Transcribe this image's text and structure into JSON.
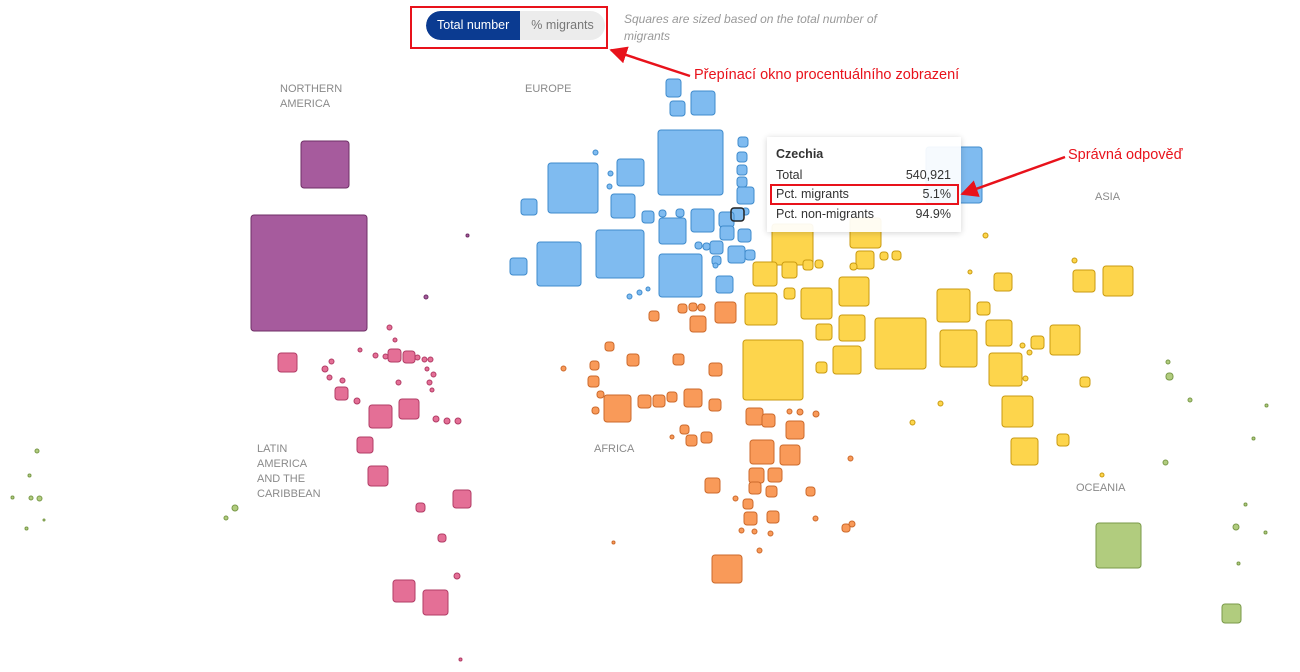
{
  "toggle": {
    "total_label": "Total number",
    "pct_label": "% migrants",
    "note": "Squares are sized based on the total number of migrants"
  },
  "regions": [
    {
      "name": "NORTHERN AMERICA",
      "lines": [
        "NORTHERN",
        "AMERICA"
      ]
    },
    {
      "name": "EUROPE",
      "lines": [
        "EUROPE"
      ]
    },
    {
      "name": "ASIA",
      "lines": [
        "ASIA"
      ]
    },
    {
      "name": "LATIN AMERICA AND THE CARIBBEAN",
      "lines": [
        "LATIN",
        "AMERICA",
        "AND THE",
        "CARIBBEAN"
      ]
    },
    {
      "name": "AFRICA",
      "lines": [
        "AFRICA"
      ]
    },
    {
      "name": "OCEANIA",
      "lines": [
        "OCEANIA"
      ]
    }
  ],
  "tooltip": {
    "country": "Czechia",
    "rows": [
      {
        "label": "Total",
        "value": "540,921"
      },
      {
        "label": "Pct. migrants",
        "value": "5.1%"
      },
      {
        "label": "Pct. non-migrants",
        "value": "94.9%"
      }
    ]
  },
  "annotations": {
    "toggle_label": "Přepínací okno procentuálního zobrazení",
    "answer_label": "Správná odpověď"
  },
  "colors": {
    "northern_america": "#a65b9d",
    "latin_america": "#e46f96",
    "europe": "#7fbbf0",
    "asia": "#fdd54c",
    "africa": "#f99a59",
    "oceania": "#b1cc7e",
    "annotation": "#e8121b",
    "toggle_active": "#0b3b91"
  },
  "chart_data": {
    "type": "scatter",
    "encoding": "square area proportional to total number of migrants",
    "highlighted": "Czechia"
  }
}
